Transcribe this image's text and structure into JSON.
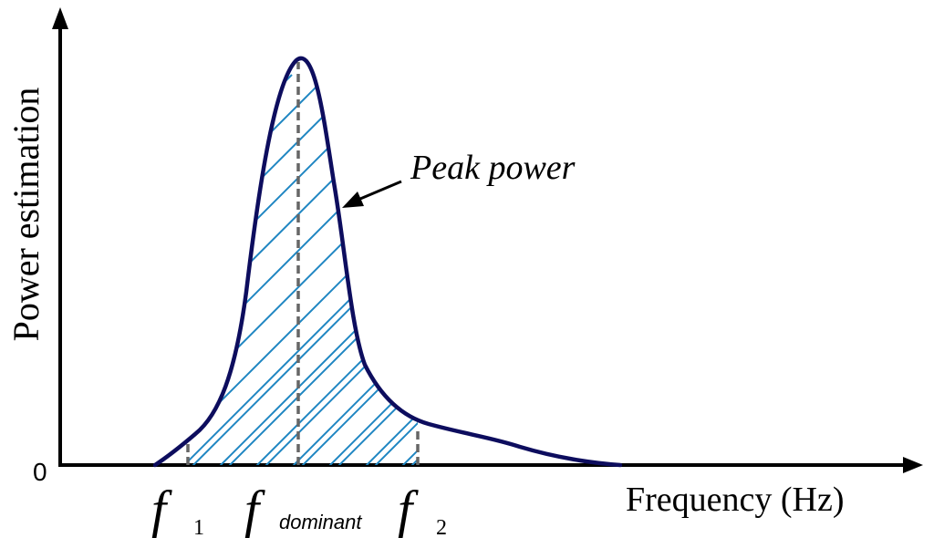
{
  "diagram": {
    "y_axis_label": "Power estimation",
    "x_axis_label": "Frequency (Hz)",
    "origin_label": "0",
    "annotation": "Peak power",
    "markers": {
      "f1": {
        "symbol": "f",
        "subscript": "1"
      },
      "dominant": {
        "symbol": "f",
        "subscript": "dominant"
      },
      "f2": {
        "symbol": "f",
        "subscript": "2"
      }
    },
    "colors": {
      "curve": "#0d0d5e",
      "hatch": "#1f86c2",
      "marker_line": "#666666",
      "axis": "#000000"
    }
  }
}
